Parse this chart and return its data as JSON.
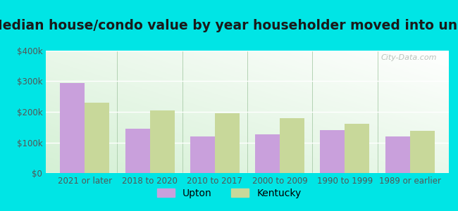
{
  "title": "Median house/condo value by year householder moved into unit",
  "categories": [
    "2021 or later",
    "2018 to 2020",
    "2010 to 2017",
    "2000 to 2009",
    "1990 to 1999",
    "1989 or earlier"
  ],
  "upton_values": [
    295000,
    145000,
    120000,
    127000,
    140000,
    120000
  ],
  "kentucky_values": [
    230000,
    205000,
    195000,
    180000,
    160000,
    137000
  ],
  "upton_color": "#c9a0dc",
  "kentucky_color": "#c8d89a",
  "fig_bg_color": "#00e5e5",
  "ylim": [
    0,
    400000
  ],
  "yticks": [
    0,
    100000,
    200000,
    300000,
    400000
  ],
  "ytick_labels": [
    "$0",
    "$100k",
    "$200k",
    "$300k",
    "$400k"
  ],
  "bar_width": 0.38,
  "title_fontsize": 13.5,
  "tick_fontsize": 8.5,
  "legend_fontsize": 10,
  "watermark": "City-Data.com",
  "title_color": "#1a1a1a",
  "tick_color": "#555555"
}
